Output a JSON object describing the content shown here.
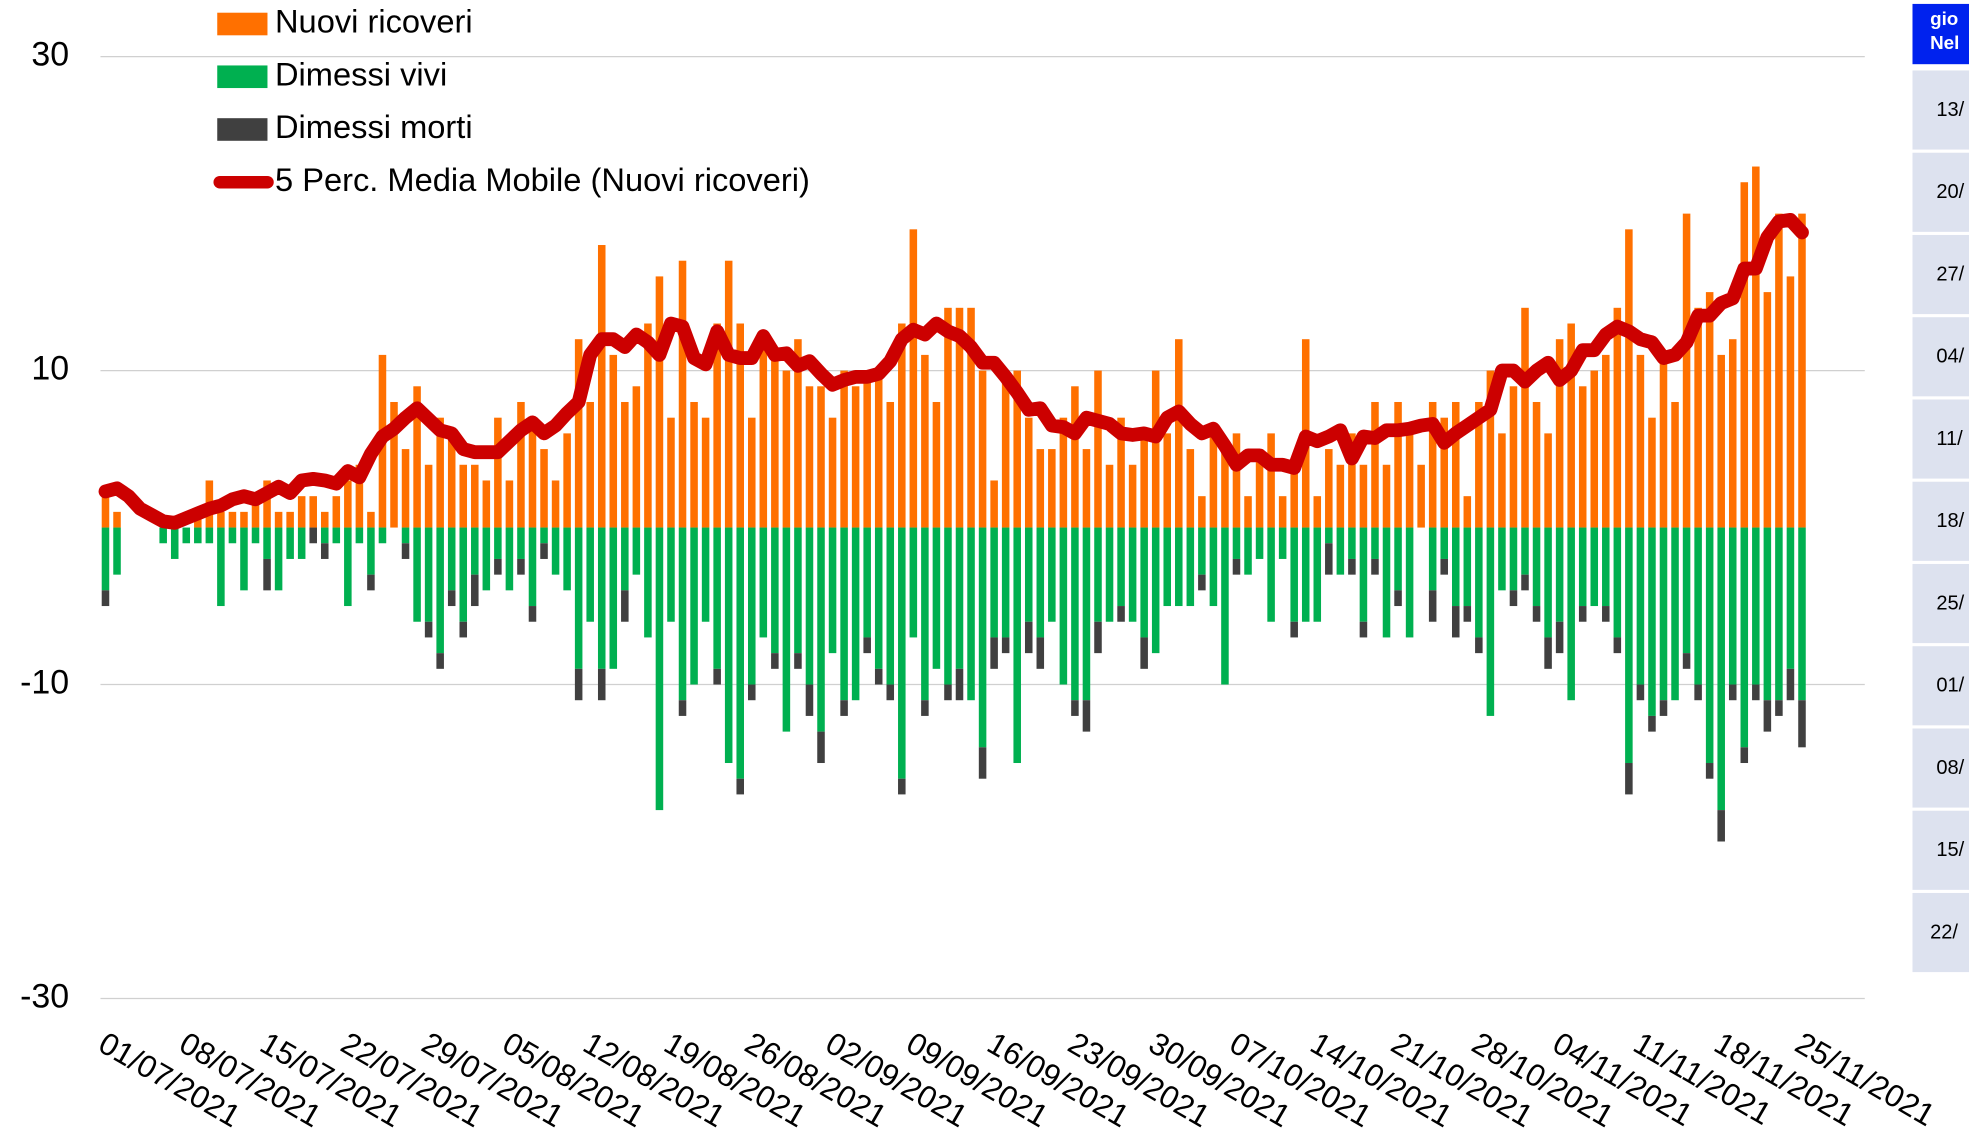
{
  "chart_data": {
    "type": "bar",
    "categories": [
      "01/07/2021",
      null,
      null,
      null,
      null,
      null,
      null,
      "08/07/2021",
      null,
      null,
      null,
      null,
      null,
      null,
      "15/07/2021",
      null,
      null,
      null,
      null,
      null,
      null,
      "22/07/2021",
      null,
      null,
      null,
      null,
      null,
      null,
      "29/07/2021",
      null,
      null,
      null,
      null,
      null,
      null,
      "05/08/2021",
      null,
      null,
      null,
      null,
      null,
      null,
      "12/08/2021",
      null,
      null,
      null,
      null,
      null,
      null,
      "19/08/2021",
      null,
      null,
      null,
      null,
      null,
      null,
      "26/08/2021",
      null,
      null,
      null,
      null,
      null,
      null,
      "02/09/2021",
      null,
      null,
      null,
      null,
      null,
      null,
      "09/09/2021",
      null,
      null,
      null,
      null,
      null,
      null,
      "16/09/2021",
      null,
      null,
      null,
      null,
      null,
      null,
      "23/09/2021",
      null,
      null,
      null,
      null,
      null,
      null,
      "30/09/2021",
      null,
      null,
      null,
      null,
      null,
      null,
      "07/10/2021",
      null,
      null,
      null,
      null,
      null,
      null,
      "14/10/2021",
      null,
      null,
      null,
      null,
      null,
      null,
      "21/10/2021",
      null,
      null,
      null,
      null,
      null,
      null,
      "28/10/2021",
      null,
      null,
      null,
      null,
      null,
      null,
      "04/11/2021",
      null,
      null,
      null,
      null,
      null,
      null,
      "11/11/2021",
      null,
      null,
      null,
      null,
      null,
      null,
      "18/11/2021",
      null,
      null,
      null,
      null,
      null,
      null,
      "25/11/2021"
    ],
    "series": [
      {
        "name": "Nuovi ricoveri",
        "color": "#ff7000",
        "stack": "pos",
        "values": [
          2,
          1,
          0,
          0,
          0,
          0,
          0,
          0,
          1,
          3,
          1,
          1,
          1,
          2,
          3,
          1,
          1,
          2,
          2,
          1,
          2,
          3,
          4,
          1,
          11,
          8,
          5,
          9,
          4,
          7,
          6,
          4,
          4,
          3,
          7,
          3,
          8,
          7,
          5,
          3,
          6,
          12,
          8,
          18,
          11,
          8,
          9,
          13,
          16,
          7,
          17,
          8,
          7,
          13,
          17,
          13,
          7,
          12,
          11,
          10,
          12,
          9,
          9,
          7,
          10,
          9,
          10,
          10,
          8,
          13,
          19,
          11,
          8,
          14,
          14,
          14,
          10,
          3,
          10,
          10,
          7,
          5,
          5,
          7,
          9,
          5,
          10,
          4,
          7,
          4,
          6,
          10,
          6,
          12,
          5,
          2,
          6,
          5,
          6,
          2,
          5,
          6,
          2,
          4,
          12,
          2,
          5,
          4,
          6,
          4,
          8,
          4,
          8,
          6,
          4,
          8,
          7,
          8,
          2,
          8,
          10,
          6,
          9,
          14,
          8,
          6,
          12,
          13,
          9,
          10,
          11,
          14,
          19,
          11,
          7,
          11,
          8,
          20,
          14,
          15,
          11,
          12,
          22,
          23,
          15,
          20,
          16,
          20
        ]
      },
      {
        "name": "Dimessi vivi",
        "color": "#00b050",
        "stack": "neg",
        "values": [
          -4,
          -3,
          0,
          0,
          0,
          -1,
          -2,
          -1,
          -1,
          -1,
          -5,
          -1,
          -4,
          -1,
          -2,
          -4,
          -2,
          -2,
          0,
          -1,
          -1,
          -5,
          -1,
          -3,
          -1,
          0,
          -1,
          -6,
          -6,
          -8,
          -4,
          -6,
          -3,
          -4,
          -2,
          -4,
          -2,
          -5,
          -1,
          -3,
          -4,
          -9,
          -6,
          -9,
          -9,
          -4,
          -3,
          -7,
          -18,
          -6,
          -11,
          -10,
          -6,
          -9,
          -15,
          -16,
          -10,
          -7,
          -8,
          -13,
          -8,
          -10,
          -13,
          -8,
          -11,
          -11,
          -7,
          -9,
          -10,
          -16,
          -7,
          -11,
          -9,
          -10,
          -9,
          -11,
          -14,
          -7,
          -7,
          -15,
          -6,
          -7,
          -6,
          -10,
          -11,
          -11,
          -6,
          -6,
          -5,
          -6,
          -7,
          -8,
          -5,
          -5,
          -5,
          -3,
          -5,
          -10,
          -2,
          -3,
          -2,
          -6,
          -2,
          -6,
          -6,
          -6,
          -1,
          -3,
          -2,
          -6,
          -2,
          -7,
          -4,
          -7,
          0,
          -4,
          -2,
          -5,
          -5,
          -7,
          -12,
          -4,
          -4,
          -3,
          -5,
          -7,
          -6,
          -11,
          -5,
          -5,
          -5,
          -7,
          -15,
          -10,
          -12,
          -11,
          -11,
          -8,
          -10,
          -15,
          -18,
          -10,
          -14,
          -10,
          -11,
          -11,
          -9,
          -11
        ]
      },
      {
        "name": "Dimessi morti",
        "color": "#404040",
        "stack": "neg",
        "values": [
          -1,
          0,
          0,
          0,
          0,
          0,
          0,
          0,
          0,
          0,
          0,
          0,
          0,
          0,
          -2,
          0,
          0,
          0,
          -1,
          -1,
          0,
          0,
          0,
          -1,
          0,
          0,
          -1,
          0,
          -1,
          -1,
          -1,
          -1,
          -2,
          0,
          -1,
          0,
          -1,
          -1,
          -1,
          0,
          0,
          -2,
          0,
          -2,
          0,
          -2,
          0,
          0,
          0,
          0,
          -1,
          0,
          0,
          -1,
          0,
          -1,
          -1,
          0,
          -1,
          0,
          -1,
          -2,
          -2,
          0,
          -1,
          0,
          -1,
          -1,
          -1,
          -1,
          0,
          -1,
          0,
          -1,
          -2,
          0,
          -2,
          -2,
          -1,
          0,
          -2,
          -2,
          0,
          0,
          -1,
          -2,
          -2,
          0,
          -1,
          0,
          -2,
          0,
          0,
          0,
          0,
          -1,
          0,
          0,
          -1,
          0,
          0,
          0,
          0,
          -1,
          0,
          0,
          -2,
          0,
          -1,
          -1,
          -1,
          0,
          -1,
          0,
          0,
          -2,
          -1,
          -2,
          -1,
          -1,
          0,
          0,
          -1,
          -1,
          -1,
          -2,
          -2,
          0,
          -1,
          0,
          -1,
          -1,
          -2,
          -1,
          -1,
          -1,
          0,
          -1,
          -1,
          -1,
          -2,
          -1,
          -1,
          -1,
          -2,
          -1,
          -2,
          -3
        ]
      },
      {
        "name": "5 Perc. Media Mobile (Nuovi ricoveri)",
        "color": "#cc0000",
        "type": "line",
        "values": [
          2.3,
          2.5,
          2,
          1.2,
          0.8,
          0.4,
          0.3,
          0.6,
          0.9,
          1.2,
          1.4,
          1.8,
          2,
          1.8,
          2.2,
          2.6,
          2.2,
          3,
          3.1,
          3,
          2.8,
          3.6,
          3.2,
          4.7,
          5.8,
          6.3,
          7,
          7.6,
          6.9,
          6.2,
          6,
          5,
          4.8,
          4.8,
          4.8,
          5.5,
          6.2,
          6.7,
          6,
          6.5,
          7.3,
          8,
          11,
          12,
          12,
          11.5,
          12.3,
          11.8,
          11,
          13,
          12.8,
          10.8,
          10.4,
          12.5,
          11,
          10.8,
          10.8,
          12.2,
          11,
          11.1,
          10.3,
          10.6,
          9.8,
          9.1,
          9.4,
          9.6,
          9.6,
          9.8,
          10.6,
          12,
          12.6,
          12.3,
          13,
          12.5,
          12.2,
          11.5,
          10.5,
          10.5,
          9.6,
          8.6,
          7.5,
          7.6,
          6.5,
          6.4,
          6,
          7,
          6.8,
          6.6,
          6,
          5.9,
          6,
          5.8,
          7,
          7.4,
          6.6,
          6,
          6.3,
          5.2,
          4,
          4.6,
          4.6,
          4,
          4,
          3.8,
          5.8,
          5.5,
          5.8,
          6.2,
          4.4,
          5.8,
          5.7,
          6.2,
          6.2,
          6.3,
          6.5,
          6.6,
          5.4,
          6,
          6.5,
          7,
          7.5,
          10,
          10,
          9.3,
          10,
          10.5,
          9.4,
          10,
          11.3,
          11.3,
          12.3,
          12.8,
          12.5,
          12,
          11.8,
          10.8,
          11,
          11.8,
          13.5,
          13.5,
          14.3,
          14.6,
          16.5,
          16.5,
          18.5,
          19.5,
          19.6,
          18.8
        ]
      }
    ],
    "ylim": [
      -30,
      30
    ],
    "yticks": [
      30,
      10,
      -10,
      -30
    ],
    "grid": true,
    "legend": "top-left"
  },
  "side_table": {
    "header": [
      "gio",
      "Nel"
    ],
    "rows": [
      "13/",
      "20/",
      "27/",
      "04/",
      "11/",
      "18/",
      "25/",
      "01/",
      "08/",
      "15/",
      "22/"
    ],
    "color": "#0022ee"
  }
}
